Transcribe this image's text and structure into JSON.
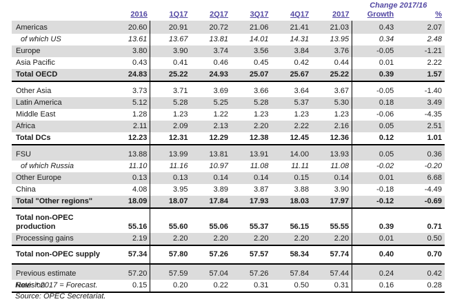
{
  "header": {
    "change_label": "Change 2017/16",
    "columns": [
      "2016",
      "1Q17",
      "2Q17",
      "3Q17",
      "4Q17",
      "2017",
      "Growth",
      "%"
    ]
  },
  "table": {
    "sections": [
      {
        "rows": [
          {
            "label": "Americas",
            "style": "normal",
            "shaded": true,
            "indent": false,
            "values": [
              "20.60",
              "20.91",
              "20.72",
              "21.06",
              "21.41",
              "21.03",
              "0.43",
              "2.07"
            ]
          },
          {
            "label": "of which US",
            "style": "italic",
            "shaded": false,
            "indent": true,
            "values": [
              "13.61",
              "13.67",
              "13.81",
              "14.01",
              "14.31",
              "13.95",
              "0.34",
              "2.48"
            ]
          },
          {
            "label": "Europe",
            "style": "normal",
            "shaded": true,
            "indent": false,
            "values": [
              "3.80",
              "3.90",
              "3.74",
              "3.56",
              "3.84",
              "3.76",
              "-0.05",
              "-1.21"
            ]
          },
          {
            "label": "Asia Pacific",
            "style": "normal",
            "shaded": false,
            "indent": false,
            "values": [
              "0.43",
              "0.41",
              "0.46",
              "0.45",
              "0.42",
              "0.44",
              "0.01",
              "2.22"
            ]
          },
          {
            "label": "Total OECD",
            "style": "bold",
            "shaded": true,
            "indent": false,
            "values": [
              "24.83",
              "25.22",
              "24.93",
              "25.07",
              "25.67",
              "25.22",
              "0.39",
              "1.57"
            ]
          }
        ]
      },
      {
        "rows": [
          {
            "label": "Other Asia",
            "style": "normal",
            "shaded": false,
            "indent": false,
            "values": [
              "3.73",
              "3.71",
              "3.69",
              "3.66",
              "3.64",
              "3.67",
              "-0.05",
              "-1.40"
            ]
          },
          {
            "label": "Latin America",
            "style": "normal",
            "shaded": true,
            "indent": false,
            "values": [
              "5.12",
              "5.28",
              "5.25",
              "5.28",
              "5.37",
              "5.30",
              "0.18",
              "3.49"
            ]
          },
          {
            "label": "Middle East",
            "style": "normal",
            "shaded": false,
            "indent": false,
            "values": [
              "1.28",
              "1.23",
              "1.22",
              "1.23",
              "1.23",
              "1.23",
              "-0.06",
              "-4.35"
            ]
          },
          {
            "label": "Africa",
            "style": "normal",
            "shaded": true,
            "indent": false,
            "values": [
              "2.11",
              "2.09",
              "2.13",
              "2.20",
              "2.22",
              "2.16",
              "0.05",
              "2.51"
            ]
          },
          {
            "label": "Total DCs",
            "style": "bold",
            "shaded": false,
            "indent": false,
            "values": [
              "12.23",
              "12.31",
              "12.29",
              "12.38",
              "12.45",
              "12.36",
              "0.12",
              "1.01"
            ]
          }
        ]
      },
      {
        "rows": [
          {
            "label": "FSU",
            "style": "normal",
            "shaded": true,
            "indent": false,
            "values": [
              "13.88",
              "13.99",
              "13.81",
              "13.91",
              "14.00",
              "13.93",
              "0.05",
              "0.36"
            ]
          },
          {
            "label": "of which Russia",
            "style": "italic",
            "shaded": false,
            "indent": true,
            "values": [
              "11.10",
              "11.16",
              "10.97",
              "11.08",
              "11.11",
              "11.08",
              "-0.02",
              "-0.20"
            ]
          },
          {
            "label": "Other Europe",
            "style": "normal",
            "shaded": true,
            "indent": false,
            "values": [
              "0.13",
              "0.13",
              "0.14",
              "0.14",
              "0.15",
              "0.14",
              "0.01",
              "6.68"
            ]
          },
          {
            "label": "China",
            "style": "normal",
            "shaded": false,
            "indent": false,
            "values": [
              "4.08",
              "3.95",
              "3.89",
              "3.87",
              "3.88",
              "3.90",
              "-0.18",
              "-4.49"
            ]
          },
          {
            "label": "Total \"Other regions\"",
            "style": "bold",
            "shaded": true,
            "indent": false,
            "values": [
              "18.09",
              "18.07",
              "17.84",
              "17.93",
              "18.03",
              "17.97",
              "-0.12",
              "-0.69"
            ]
          }
        ]
      },
      {
        "rows": [
          {
            "label": "Total non-OPEC production",
            "style": "bold",
            "shaded": false,
            "indent": false,
            "wrap": true,
            "values": [
              "55.16",
              "55.60",
              "55.06",
              "55.37",
              "56.15",
              "55.55",
              "0.39",
              "0.71"
            ]
          },
          {
            "label": "Processing gains",
            "style": "normal",
            "shaded": true,
            "indent": false,
            "values": [
              "2.19",
              "2.20",
              "2.20",
              "2.20",
              "2.20",
              "2.20",
              "0.01",
              "0.50"
            ]
          }
        ]
      },
      {
        "rows": [
          {
            "label": "Total non-OPEC supply",
            "style": "bold",
            "shaded": false,
            "indent": false,
            "tall": true,
            "values": [
              "57.34",
              "57.80",
              "57.26",
              "57.57",
              "58.34",
              "57.74",
              "0.40",
              "0.70"
            ]
          }
        ]
      },
      {
        "rows": [
          {
            "label": "Previous estimate",
            "style": "normal",
            "shaded": true,
            "indent": false,
            "values": [
              "57.20",
              "57.59",
              "57.04",
              "57.26",
              "57.84",
              "57.44",
              "0.24",
              "0.42"
            ]
          },
          {
            "label": "Revision",
            "style": "normal",
            "shaded": false,
            "indent": false,
            "values": [
              "0.15",
              "0.20",
              "0.22",
              "0.31",
              "0.50",
              "0.31",
              "0.16",
              "0.28"
            ]
          }
        ]
      }
    ]
  },
  "notes": {
    "note_line": "Note: * 2017 = Forecast.",
    "source_line": "Source: OPEC Secretariat."
  },
  "colors": {
    "header_text": "#5348A3",
    "row_shade": "#DCDCDC",
    "border": "#000000"
  }
}
